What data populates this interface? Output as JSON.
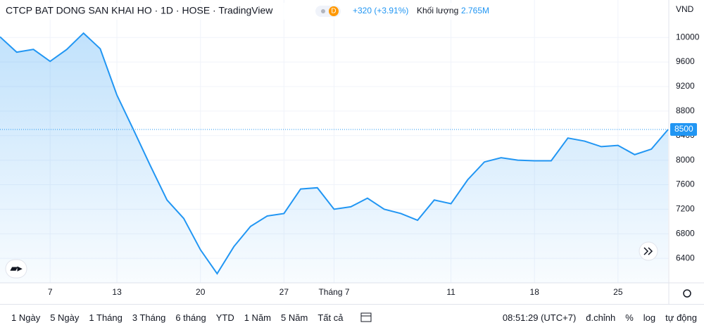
{
  "chart_data": {
    "type": "area",
    "title": "CTCP BAT DONG SAN KHAI HO · 1D · HOSE · TradingView",
    "badge": "D",
    "change": "+320 (+3.91%)",
    "volume_label": "Khối lượng",
    "volume": "2.765M",
    "currency": "VND",
    "categories": [
      null,
      null,
      null,
      "7",
      null,
      null,
      null,
      "13",
      null,
      null,
      null,
      null,
      "20",
      null,
      null,
      null,
      null,
      "27",
      null,
      null,
      "Tháng 7",
      null,
      null,
      null,
      null,
      null,
      null,
      "11",
      null,
      null,
      null,
      null,
      "18",
      null,
      null,
      null,
      null,
      "25",
      null,
      null,
      null
    ],
    "series": [
      {
        "name": "CTCP BAT DONG SAN KHAI HO",
        "color": "#2196f3",
        "values": [
          10010,
          9760,
          9805,
          9610,
          9805,
          10070,
          9815,
          9060,
          8490,
          7910,
          7350,
          7050,
          6540,
          6150,
          6590,
          6920,
          7090,
          7130,
          7530,
          7550,
          7200,
          7240,
          7380,
          7200,
          7130,
          7020,
          7350,
          7290,
          7680,
          7970,
          8040,
          8000,
          7990,
          7990,
          8360,
          8310,
          8220,
          8240,
          8090,
          8180,
          8500
        ]
      }
    ],
    "ylim": [
      6000,
      10610
    ],
    "yticks": [
      6400,
      6800,
      7200,
      7600,
      8000,
      8400,
      8800,
      9200,
      9600,
      10000
    ],
    "grid": true,
    "toolbar": {
      "ranges": [
        "1 Ngày",
        "5 Ngày",
        "1 Tháng",
        "3 Tháng",
        "6 tháng",
        "YTD",
        "1 Năm",
        "5 Năm",
        "Tất cả"
      ],
      "time": "08:51:29 (UTC+7)",
      "options": [
        "đ.chỉnh",
        "%",
        "log",
        "tự động"
      ]
    }
  }
}
